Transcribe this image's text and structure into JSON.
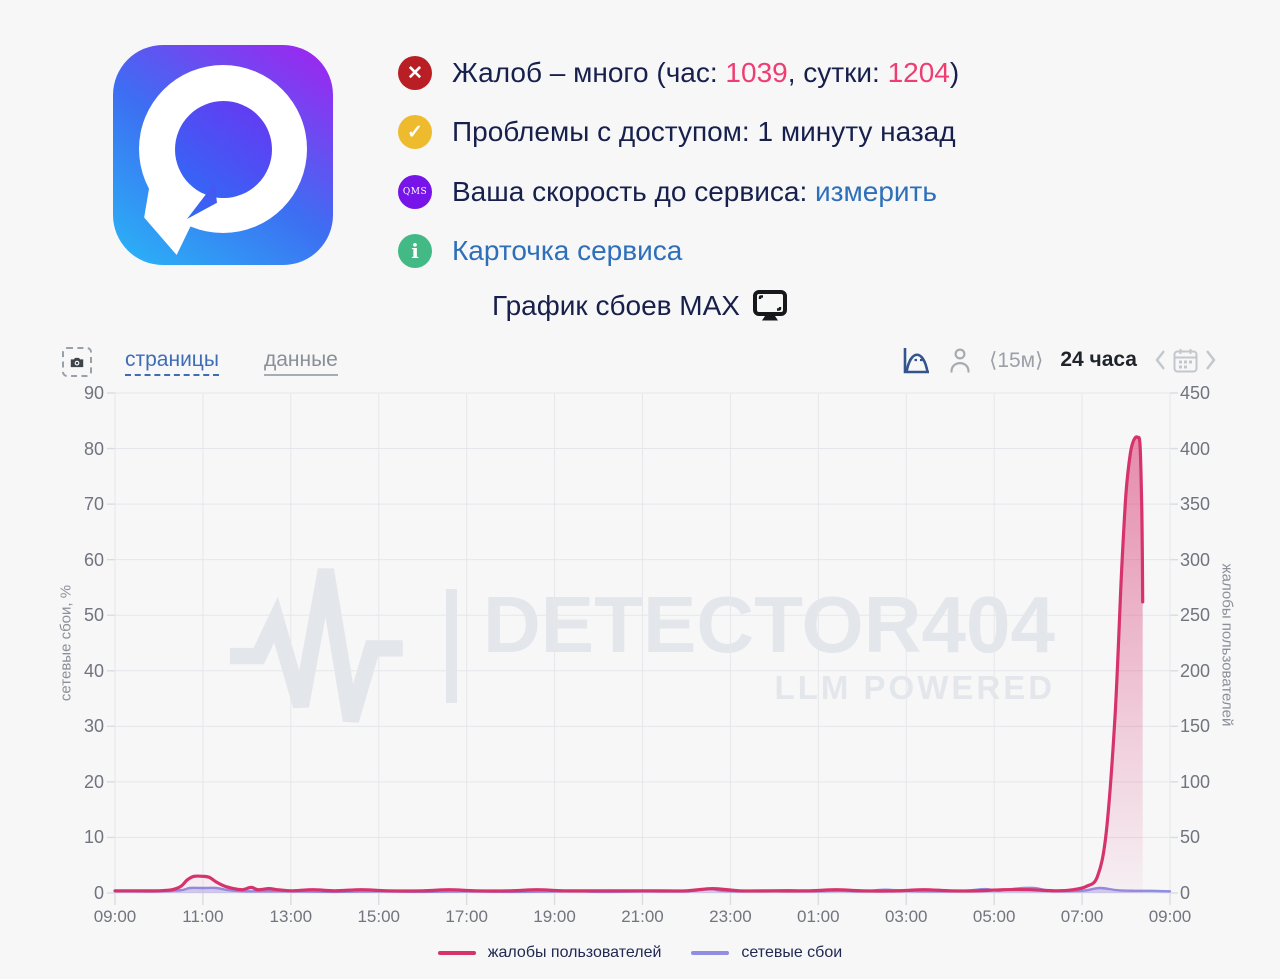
{
  "service": {
    "name": "MAX",
    "status_rows": [
      {
        "icon": "error-cross-icon",
        "icon_glyph": "✕",
        "icon_color": "#b81e24",
        "text_pre": "Жалоб – много (час: ",
        "hour_value": "1039",
        "text_mid": ", сутки: ",
        "day_value": "1204",
        "text_post": ")",
        "value_color": "#ee3d72"
      },
      {
        "icon": "check-icon",
        "icon_glyph": "✓",
        "icon_color": "#efbb2e",
        "text": "Проблемы с доступом: 1 минуту назад"
      },
      {
        "icon": "qms-badge-icon",
        "icon_glyph": "QMS",
        "icon_color": "#7714e8",
        "text": "Ваша скорость до сервиса: ",
        "link": "измерить",
        "link_color": "#2e6fba"
      },
      {
        "icon": "info-icon",
        "icon_glyph": "i",
        "icon_color": "#43ba85",
        "link": "Карточка сервиса",
        "link_color": "#2e6fba"
      }
    ]
  },
  "title": {
    "text": "График сбоев MAX",
    "icon": "monitor-icon"
  },
  "toolbar": {
    "screenshot_button": "camera-icon",
    "pages_link": "страницы",
    "data_link": "данные",
    "distribution_icon": "distribution-curve-icon",
    "user_icon": "person-icon",
    "interval_label": "⟨15м⟩",
    "range_label": "24 часа",
    "prev_icon": "chevron-left",
    "calendar_icon": "calendar-icon",
    "next_icon": "chevron-right"
  },
  "chart": {
    "left_axis": {
      "title": "сетевые сбои, %",
      "ticks": [
        90,
        80,
        70,
        60,
        50,
        40,
        30,
        20,
        10,
        0
      ]
    },
    "right_axis": {
      "title": "жалобы пользователей",
      "ticks": [
        450,
        400,
        350,
        300,
        250,
        200,
        150,
        100,
        50,
        0
      ]
    },
    "x_axis": {
      "ticks": [
        "09:00",
        "11:00",
        "13:00",
        "15:00",
        "17:00",
        "19:00",
        "21:00",
        "23:00",
        "01:00",
        "03:00",
        "05:00",
        "07:00",
        "09:00"
      ]
    },
    "watermark": {
      "brand": "DETECTOR404",
      "tagline": "LLM POWERED"
    },
    "grid_color": "#e5e7ea",
    "tick_color": "#d9dce0"
  },
  "chart_data": {
    "type": "line",
    "x_unit": "hours since 09:00",
    "x_range": [
      0,
      24
    ],
    "grid": true,
    "legend_position": "bottom",
    "series": [
      {
        "name": "жалобы пользователей",
        "color": "#d6336c",
        "axis": "right",
        "ylim": [
          0,
          450
        ],
        "points": [
          [
            0,
            2
          ],
          [
            0.6,
            2
          ],
          [
            1.0,
            2
          ],
          [
            1.3,
            3
          ],
          [
            1.5,
            6
          ],
          [
            1.65,
            12
          ],
          [
            1.8,
            15
          ],
          [
            2.0,
            15
          ],
          [
            2.15,
            14
          ],
          [
            2.3,
            10
          ],
          [
            2.5,
            6
          ],
          [
            2.7,
            4
          ],
          [
            2.9,
            3
          ],
          [
            3.1,
            5
          ],
          [
            3.25,
            3
          ],
          [
            3.5,
            4
          ],
          [
            3.7,
            3
          ],
          [
            4.0,
            2
          ],
          [
            4.5,
            3
          ],
          [
            5.0,
            2
          ],
          [
            5.6,
            3
          ],
          [
            6.2,
            2
          ],
          [
            7.0,
            2
          ],
          [
            7.6,
            3
          ],
          [
            8.2,
            2
          ],
          [
            9.0,
            2
          ],
          [
            9.6,
            3
          ],
          [
            10.2,
            2
          ],
          [
            11.0,
            2
          ],
          [
            11.6,
            2
          ],
          [
            12.2,
            2
          ],
          [
            13.0,
            2
          ],
          [
            13.6,
            4
          ],
          [
            14.2,
            2
          ],
          [
            15.0,
            2
          ],
          [
            15.8,
            2
          ],
          [
            16.4,
            3
          ],
          [
            17.0,
            2
          ],
          [
            17.8,
            2
          ],
          [
            18.4,
            3
          ],
          [
            19.0,
            2
          ],
          [
            19.6,
            2
          ],
          [
            20.2,
            3
          ],
          [
            20.8,
            3
          ],
          [
            21.4,
            2
          ],
          [
            21.8,
            3
          ],
          [
            22.1,
            6
          ],
          [
            22.35,
            15
          ],
          [
            22.55,
            55
          ],
          [
            22.75,
            160
          ],
          [
            22.9,
            290
          ],
          [
            23.0,
            360
          ],
          [
            23.1,
            396
          ],
          [
            23.18,
            408
          ],
          [
            23.26,
            410
          ],
          [
            23.32,
            402
          ],
          [
            23.36,
            340
          ],
          [
            23.38,
            262
          ]
        ]
      },
      {
        "name": "сетевые сбои",
        "color": "#918de2",
        "axis": "left",
        "ylim": [
          0,
          90
        ],
        "points": [
          [
            0,
            0.3
          ],
          [
            1,
            0.3
          ],
          [
            1.5,
            0.5
          ],
          [
            1.7,
            0.9
          ],
          [
            2.0,
            0.9
          ],
          [
            2.3,
            0.9
          ],
          [
            2.6,
            0.5
          ],
          [
            3,
            0.3
          ],
          [
            4,
            0.3
          ],
          [
            5,
            0.2
          ],
          [
            6,
            0.3
          ],
          [
            7,
            0.2
          ],
          [
            8,
            0.3
          ],
          [
            9,
            0.2
          ],
          [
            10,
            0.3
          ],
          [
            10.5,
            0.4
          ],
          [
            11,
            0.2
          ],
          [
            12,
            0.3
          ],
          [
            13,
            0.3
          ],
          [
            13.5,
            0.8
          ],
          [
            13.8,
            0.4
          ],
          [
            14.5,
            0.3
          ],
          [
            15.3,
            0.5
          ],
          [
            15.8,
            0.3
          ],
          [
            16.5,
            0.4
          ],
          [
            17,
            0.3
          ],
          [
            17.5,
            0.6
          ],
          [
            18,
            0.4
          ],
          [
            18.5,
            0.3
          ],
          [
            19.3,
            0.4
          ],
          [
            19.8,
            0.7
          ],
          [
            20.1,
            0.4
          ],
          [
            20.5,
            0.8
          ],
          [
            20.9,
            0.9
          ],
          [
            21.3,
            0.4
          ],
          [
            22.0,
            0.4
          ],
          [
            22.4,
            0.9
          ],
          [
            22.8,
            0.5
          ],
          [
            23.2,
            0.4
          ],
          [
            23.6,
            0.4
          ],
          [
            24,
            0.3
          ]
        ]
      }
    ],
    "title": "График сбоев MAX",
    "xlabel": "",
    "ylabel_left": "сетевые сбои, %",
    "ylabel_right": "жалобы пользователей"
  },
  "legend": {
    "items": [
      {
        "label": "жалобы пользователей",
        "color": "#d6336c"
      },
      {
        "label": "сетевые сбои",
        "color": "#918de2"
      }
    ]
  }
}
